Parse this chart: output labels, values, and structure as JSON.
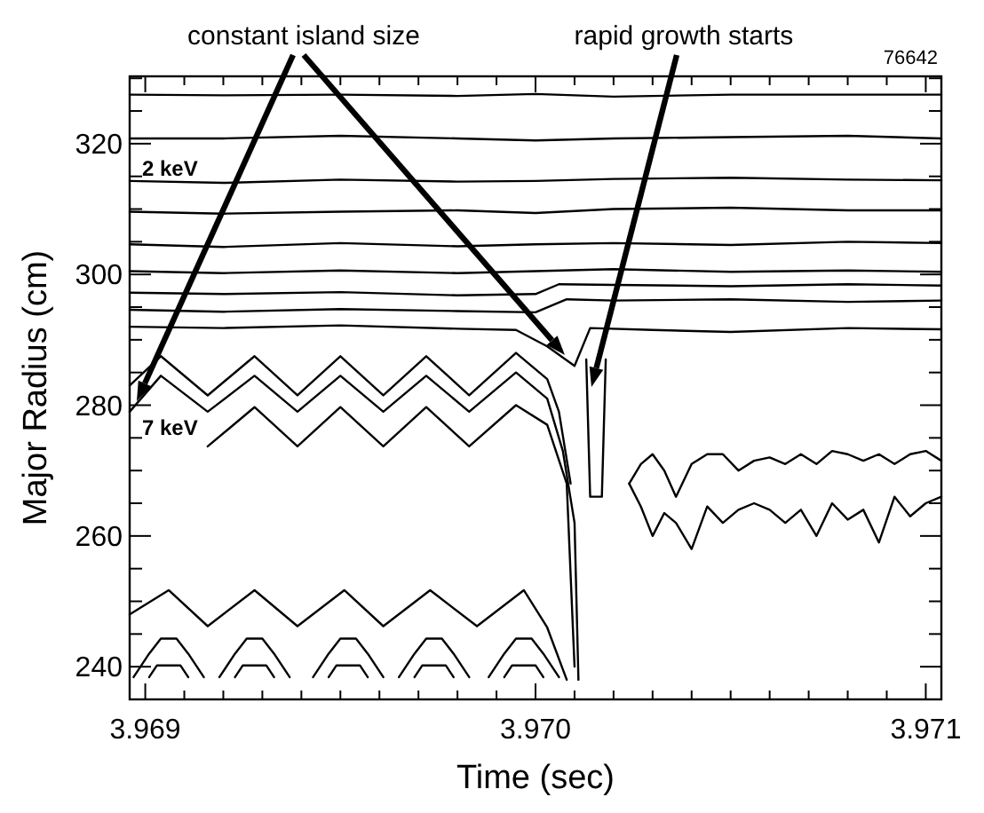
{
  "chart_data": {
    "type": "line",
    "xlabel": "Time (sec)",
    "ylabel": "Major Radius (cm)",
    "xlim": [
      3.96896,
      3.97104
    ],
    "ylim": [
      235,
      330.3
    ],
    "xticks": [
      {
        "value": 3.969,
        "label": "3.969"
      },
      {
        "value": 3.9691,
        "label": null
      },
      {
        "value": 3.9692,
        "label": null
      },
      {
        "value": 3.9693,
        "label": null
      },
      {
        "value": 3.9694,
        "label": null
      },
      {
        "value": 3.9695,
        "label": null
      },
      {
        "value": 3.9696,
        "label": null
      },
      {
        "value": 3.9697,
        "label": null
      },
      {
        "value": 3.9698,
        "label": null
      },
      {
        "value": 3.9699,
        "label": null
      },
      {
        "value": 3.97,
        "label": "3.970"
      },
      {
        "value": 3.9701,
        "label": null
      },
      {
        "value": 3.9702,
        "label": null
      },
      {
        "value": 3.9703,
        "label": null
      },
      {
        "value": 3.9704,
        "label": null
      },
      {
        "value": 3.9705,
        "label": null
      },
      {
        "value": 3.9706,
        "label": null
      },
      {
        "value": 3.9707,
        "label": null
      },
      {
        "value": 3.9708,
        "label": null
      },
      {
        "value": 3.9709,
        "label": null
      },
      {
        "value": 3.971,
        "label": "3.971"
      }
    ],
    "yticks": [
      240,
      {
        "value": 245,
        "label": null
      },
      {
        "value": 250,
        "label": null
      },
      {
        "value": 255,
        "label": null
      },
      260,
      {
        "value": 265,
        "label": null
      },
      {
        "value": 270,
        "label": null
      },
      {
        "value": 275,
        "label": null
      },
      280,
      {
        "value": 285,
        "label": null
      },
      {
        "value": 290,
        "label": null
      },
      {
        "value": 295,
        "label": null
      },
      300,
      {
        "value": 305,
        "label": null
      },
      {
        "value": 310,
        "label": null
      },
      {
        "value": 315,
        "label": null
      },
      320,
      {
        "value": 325,
        "label": null
      },
      {
        "value": 330,
        "label": null
      }
    ],
    "grid": false,
    "marker": "none",
    "line_style": "solid",
    "annotations": [
      "constant island size",
      "rapid growth starts",
      "76642",
      "2 keV",
      "7 keV"
    ],
    "series": [
      {
        "color": "#000000",
        "x": [
          3.96896,
          3.9692,
          3.9695,
          3.9698,
          3.97,
          3.9702,
          3.9705,
          3.9708,
          3.97104
        ],
        "values": [
          327.5,
          327.4,
          327.5,
          327.3,
          327.6,
          327.2,
          327.5,
          327.5,
          327.5
        ]
      },
      {
        "color": "#000000",
        "x": [
          3.96896,
          3.9692,
          3.9695,
          3.9698,
          3.97,
          3.9702,
          3.9705,
          3.9708,
          3.97104
        ],
        "values": [
          320.8,
          320.8,
          321.2,
          320.8,
          320.5,
          320.8,
          321,
          321.2,
          320.8
        ]
      },
      {
        "color": "#000000",
        "x": [
          3.96896,
          3.9692,
          3.9695,
          3.9698,
          3.97,
          3.9702,
          3.9705,
          3.9708,
          3.97104
        ],
        "values": [
          314.3,
          314,
          314.5,
          314.2,
          314.3,
          314.6,
          314.8,
          314.5,
          314.4
        ]
      },
      {
        "color": "#000000",
        "x": [
          3.96896,
          3.9692,
          3.9695,
          3.9698,
          3.97,
          3.9702,
          3.9705,
          3.9708,
          3.97104
        ],
        "values": [
          309.6,
          309.3,
          309.6,
          309.8,
          309.4,
          310,
          310.2,
          309.8,
          309.8
        ]
      },
      {
        "color": "#000000",
        "x": [
          3.96896,
          3.9692,
          3.9695,
          3.9698,
          3.97,
          3.9702,
          3.9705,
          3.9708,
          3.97104
        ],
        "values": [
          304.6,
          304.2,
          304.8,
          304.3,
          304.6,
          304.8,
          304.5,
          305,
          304.8
        ]
      },
      {
        "color": "#000000",
        "x": [
          3.96896,
          3.9692,
          3.9695,
          3.9698,
          3.97,
          3.9702,
          3.9705,
          3.9708,
          3.97104
        ],
        "values": [
          300.5,
          300.2,
          300.6,
          300.2,
          300.5,
          300.8,
          300.4,
          300.6,
          300.4
        ]
      },
      {
        "color": "#000000",
        "x": [
          3.96896,
          3.9692,
          3.9695,
          3.9698,
          3.97,
          3.97006,
          3.9702,
          3.9705,
          3.9708,
          3.97104
        ],
        "values": [
          297.2,
          297,
          297.3,
          296.8,
          297,
          298.5,
          298.4,
          298.2,
          298.5,
          298.3
        ]
      },
      {
        "color": "#000000",
        "x": [
          3.96896,
          3.9692,
          3.9695,
          3.9698,
          3.97,
          3.97008,
          3.9702,
          3.9705,
          3.9708,
          3.97104
        ],
        "values": [
          294.6,
          294.3,
          294.7,
          294.4,
          294.2,
          296.2,
          296,
          296.2,
          295.8,
          296
        ]
      },
      {
        "color": "#000000",
        "x": [
          3.96896,
          3.9692,
          3.9695,
          3.9698,
          3.96995,
          3.97003,
          3.9701,
          3.97014,
          3.9703,
          3.9705,
          3.9708,
          3.97104
        ],
        "values": [
          292,
          291.8,
          292.2,
          291.7,
          291.5,
          289,
          286,
          291.8,
          291.5,
          291.2,
          291.8,
          291.6
        ]
      },
      {
        "color": "#000000",
        "x": [
          3.96896,
          3.96904,
          3.96916,
          3.96928,
          3.96939,
          3.9695,
          3.96961,
          3.96972,
          3.96983,
          3.96995,
          3.97003,
          3.97006,
          3.97009
        ],
        "values": [
          283,
          287.5,
          281.5,
          287.5,
          281.5,
          287.5,
          281.5,
          287.5,
          281.5,
          288,
          284,
          279,
          268
        ]
      },
      {
        "color": "#000000",
        "x": [
          3.96896,
          3.96904,
          3.96916,
          3.96928,
          3.96939,
          3.9695,
          3.96961,
          3.96972,
          3.96983,
          3.96995,
          3.97003,
          3.97007,
          3.9701,
          3.97011
        ],
        "values": [
          279,
          284.5,
          279,
          284.5,
          279,
          284.5,
          279,
          284.5,
          279,
          285,
          281,
          273,
          262,
          238
        ]
      },
      {
        "color": "#000000",
        "x": [
          3.96916,
          3.96928,
          3.96939,
          3.9695,
          3.96961,
          3.96972,
          3.96983,
          3.96995,
          3.97003,
          3.97008,
          3.9701
        ],
        "values": [
          273.7,
          279.7,
          273.7,
          279.7,
          273.7,
          279.7,
          273.7,
          280,
          277,
          268,
          240
        ]
      },
      {
        "color": "#000000",
        "x": [
          3.96896,
          3.96906,
          3.96916,
          3.96928,
          3.96939,
          3.96951,
          3.96961,
          3.96973,
          3.96985,
          3.96997,
          3.97003,
          3.97008
        ],
        "values": [
          248,
          251.7,
          246.2,
          251.7,
          246.2,
          251.7,
          246.2,
          251.7,
          246.2,
          251.7,
          246,
          238
        ]
      },
      {
        "color": "#000000",
        "x": [
          3.96897,
          3.96901,
          3.96904,
          3.96908,
          3.96911,
          3.96915
        ],
        "values": [
          238.4,
          242,
          244.3,
          244.3,
          242,
          238.4
        ]
      },
      {
        "color": "#000000",
        "x": [
          3.96919,
          3.96923,
          3.96926,
          3.9693,
          3.96933,
          3.96937
        ],
        "values": [
          238.4,
          242,
          244.3,
          244.3,
          242,
          238.4
        ]
      },
      {
        "color": "#000000",
        "x": [
          3.96943,
          3.96947,
          3.9695,
          3.96954,
          3.96957,
          3.96961
        ],
        "values": [
          238.4,
          242,
          244.3,
          244.3,
          242,
          238.4
        ]
      },
      {
        "color": "#000000",
        "x": [
          3.96965,
          3.96969,
          3.96972,
          3.96976,
          3.96979,
          3.96983
        ],
        "values": [
          238.4,
          242,
          244.3,
          244.3,
          242,
          238.4
        ]
      },
      {
        "color": "#000000",
        "x": [
          3.96988,
          3.96992,
          3.96995,
          3.96999,
          3.97002,
          3.97006
        ],
        "values": [
          238.4,
          242,
          244.3,
          244.3,
          242,
          238.4
        ]
      },
      {
        "color": "#000000",
        "x": [
          3.96901,
          3.96903,
          3.96909,
          3.96911
        ],
        "values": [
          238.4,
          240.2,
          240.2,
          238.4
        ]
      },
      {
        "color": "#000000",
        "x": [
          3.96923,
          3.96925,
          3.96931,
          3.96933
        ],
        "values": [
          238.4,
          240.2,
          240.2,
          238.4
        ]
      },
      {
        "color": "#000000",
        "x": [
          3.96947,
          3.96949,
          3.96955,
          3.96957
        ],
        "values": [
          238.4,
          240.2,
          240.2,
          238.4
        ]
      },
      {
        "color": "#000000",
        "x": [
          3.96969,
          3.96971,
          3.96977,
          3.96979
        ],
        "values": [
          238.4,
          240.2,
          240.2,
          238.4
        ]
      },
      {
        "color": "#000000",
        "x": [
          3.96992,
          3.96994,
          3.97,
          3.97002
        ],
        "values": [
          238.4,
          240.2,
          240.2,
          238.4
        ]
      },
      {
        "color": "#000000",
        "x": [
          3.97013,
          3.97014,
          3.97017,
          3.97018
        ],
        "values": [
          287,
          266,
          266,
          287
        ]
      },
      {
        "color": "#000000",
        "x": [
          3.97024,
          3.97027,
          3.9703,
          3.97033,
          3.97036,
          3.9704,
          3.97044,
          3.97048,
          3.97052,
          3.97056,
          3.9706,
          3.97064,
          3.97068,
          3.97072,
          3.97076,
          3.9708,
          3.97084,
          3.97088,
          3.97092,
          3.97096,
          3.971,
          3.97104
        ],
        "values": [
          268,
          271,
          272.5,
          270,
          266,
          271,
          272.5,
          272.5,
          270,
          271.5,
          272,
          271,
          272.5,
          271,
          273,
          272.5,
          271.5,
          272.5,
          271,
          272.5,
          273,
          271.5
        ]
      },
      {
        "color": "#000000",
        "x": [
          3.97024,
          3.97027,
          3.9703,
          3.97033,
          3.97036,
          3.9704,
          3.97044,
          3.97048,
          3.97052,
          3.97056,
          3.9706,
          3.97064,
          3.97068,
          3.97072,
          3.97076,
          3.9708,
          3.97084,
          3.97088,
          3.97092,
          3.97096,
          3.971,
          3.97104
        ],
        "values": [
          268,
          264.5,
          260,
          263.5,
          262,
          258,
          264.5,
          262,
          264,
          265,
          264,
          262,
          264,
          260,
          265,
          262.5,
          264,
          259,
          266,
          263,
          265,
          266
        ]
      }
    ]
  }
}
